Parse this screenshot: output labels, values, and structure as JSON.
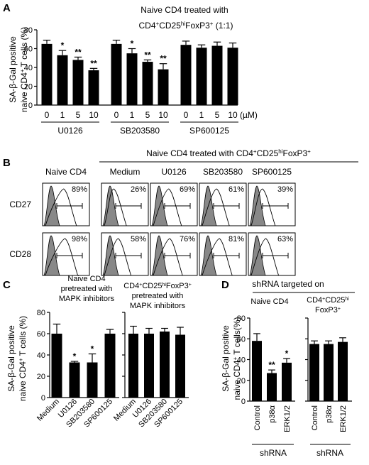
{
  "panel_labels": {
    "A": "A",
    "B": "B",
    "C": "C",
    "D": "D"
  },
  "chart_data": [
    {
      "type": "bar",
      "panel": "A",
      "title_line1": "Naive CD4 treated with",
      "title_line2_parts": [
        "CD4",
        "+",
        "CD25",
        "hi",
        "FoxP3",
        "+",
        " (1:1)"
      ],
      "ylabel_line1": "SA-β-Gal positive",
      "ylabel_line2_parts": [
        "naive CD4",
        "+",
        " T cells (%)"
      ],
      "ylim": [
        0,
        80
      ],
      "yticks": [
        "0",
        "20",
        "40",
        "60",
        "80"
      ],
      "unit_label": "(µM)",
      "groups": [
        {
          "name": "U0126",
          "doses": [
            "0",
            "1",
            "5",
            "10"
          ],
          "values": [
            65,
            53,
            48,
            37
          ],
          "errors": [
            4,
            5,
            3,
            2
          ],
          "sig": [
            "",
            "*",
            "**",
            "**"
          ]
        },
        {
          "name": "SB203580",
          "doses": [
            "0",
            "1",
            "5",
            "10"
          ],
          "values": [
            65,
            55,
            46,
            38
          ],
          "errors": [
            4,
            5,
            2,
            6
          ],
          "sig": [
            "",
            "*",
            "**",
            "**"
          ]
        },
        {
          "name": "SP600125",
          "doses": [
            "0",
            "1",
            "5",
            "10"
          ],
          "values": [
            64,
            61,
            63,
            61
          ],
          "errors": [
            4,
            3,
            4,
            5
          ],
          "sig": [
            "",
            "",
            "",
            ""
          ]
        }
      ]
    },
    {
      "type": "bar",
      "panel": "C-left",
      "title_lines": [
        "Naive CD4",
        "pretreated with",
        "MAPK inhibitors"
      ],
      "ylabel_line1": "SA-β-Gal positive",
      "ylabel_line2_parts": [
        "naive CD4",
        "+",
        " T cells (%)"
      ],
      "ylim": [
        0,
        80
      ],
      "yticks": [
        "0",
        "20",
        "40",
        "60",
        "80"
      ],
      "categories": [
        "Medium",
        "U0126",
        "SB203580",
        "SP600125"
      ],
      "values": [
        60,
        33,
        33,
        60
      ],
      "errors": [
        9,
        1,
        8,
        4
      ],
      "sig": [
        "",
        "*",
        "*",
        ""
      ]
    },
    {
      "type": "bar",
      "panel": "C-right",
      "title_line1_parts": [
        "CD4",
        "+",
        "CD25",
        "hi",
        "FoxP3",
        "+"
      ],
      "title_lines_rest": [
        "pretreated with",
        "MAPK inhibitors"
      ],
      "ylim": [
        0,
        80
      ],
      "yticks": [
        "0",
        "20",
        "40",
        "60",
        "80"
      ],
      "categories": [
        "Medium",
        "U0126",
        "SB203580",
        "SP600125"
      ],
      "values": [
        60,
        60,
        62,
        59
      ],
      "errors": [
        7,
        5,
        3,
        7
      ],
      "sig": [
        "",
        "",
        "",
        ""
      ]
    },
    {
      "type": "bar",
      "panel": "D-left",
      "header": "shRNA targeted on",
      "title": "Naive CD4",
      "ylabel_line1": "SA-β-Gal positive",
      "ylabel_line2_parts": [
        "naive CD4",
        "+",
        " T cells(%)"
      ],
      "ylim": [
        0,
        80
      ],
      "yticks": [
        "0",
        "20",
        "40",
        "60",
        "80"
      ],
      "categories": [
        "Control",
        "p38α",
        "ERK1/2"
      ],
      "values": [
        58,
        27,
        37
      ],
      "errors": [
        7,
        3,
        4
      ],
      "sig": [
        "",
        "**",
        "*"
      ],
      "footer": "shRNA"
    },
    {
      "type": "bar",
      "panel": "D-right",
      "title_line1_parts": [
        "CD4",
        "+",
        "CD25",
        "hi"
      ],
      "title_line2_parts": [
        "FoxP3",
        "+"
      ],
      "ylim": [
        0,
        80
      ],
      "yticks": [
        "0",
        "20",
        "40",
        "60",
        "80"
      ],
      "categories": [
        "Control",
        "p38α",
        "ERK1/2"
      ],
      "values": [
        55,
        55,
        57
      ],
      "errors": [
        3,
        3,
        4
      ],
      "sig": [
        "",
        "",
        ""
      ],
      "footer": "shRNA"
    }
  ],
  "flow_panel": {
    "header_parts": [
      "Naive CD4 treated with CD4",
      "+",
      "CD25",
      "hi",
      "FoxP3",
      "+"
    ],
    "columns": [
      "Naive CD4",
      "Medium",
      "U0126",
      "SB203580",
      "SP600125"
    ],
    "rows": [
      {
        "label": "CD27",
        "percents": [
          "89%",
          "26%",
          "69%",
          "61%",
          "39%"
        ]
      },
      {
        "label": "CD28",
        "percents": [
          "98%",
          "58%",
          "76%",
          "81%",
          "63%"
        ]
      }
    ]
  }
}
